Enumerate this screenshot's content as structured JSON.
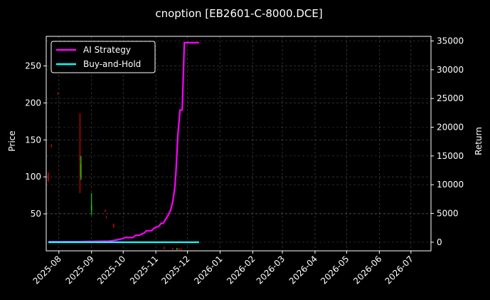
{
  "chart_data": {
    "type": "line",
    "title": "cnoption [EB2601-C-8000.DCE]",
    "xlabel": "",
    "ylabel": "Price",
    "y2label": "Return",
    "x_range": [
      "2025-07-20",
      "2026-07-20"
    ],
    "x_ticks": [
      "2025-08",
      "2025-09",
      "2025-10",
      "2025-11",
      "2025-12",
      "2026-01",
      "2026-02",
      "2026-03",
      "2026-04",
      "2026-05",
      "2026-06",
      "2026-07"
    ],
    "ylim": [
      0,
      290
    ],
    "y_ticks": [
      50,
      100,
      150,
      200,
      250
    ],
    "y2lim": [
      -1500,
      35800
    ],
    "y2_ticks": [
      0,
      5000,
      10000,
      15000,
      20000,
      25000,
      30000,
      35000
    ],
    "grid": true,
    "legend_position": "upper-left",
    "background": "#000000",
    "series": [
      {
        "name": "AI Strategy",
        "axis": "right",
        "color": "#ff00ff",
        "x": [
          "2025-07-22",
          "2025-08-20",
          "2025-09-18",
          "2025-09-25",
          "2025-09-30",
          "2025-10-03",
          "2025-10-10",
          "2025-10-13",
          "2025-10-16",
          "2025-10-21",
          "2025-10-23",
          "2025-10-28",
          "2025-10-30",
          "2025-11-04",
          "2025-11-06",
          "2025-11-08",
          "2025-11-11",
          "2025-11-13",
          "2025-11-15",
          "2025-11-17",
          "2025-11-19",
          "2025-11-20",
          "2025-11-21",
          "2025-11-22",
          "2025-11-24",
          "2025-11-26",
          "2025-11-28",
          "2025-12-12"
        ],
        "values": [
          100,
          100,
          200,
          400,
          600,
          800,
          800,
          1200,
          1200,
          1600,
          2000,
          2000,
          2400,
          2800,
          3300,
          3300,
          4200,
          4800,
          5600,
          7000,
          9500,
          12000,
          15500,
          19000,
          23000,
          23000,
          34700,
          34700
        ]
      },
      {
        "name": "Buy-and-Hold",
        "axis": "right",
        "color": "#00ffff",
        "x": [
          "2025-07-22",
          "2025-12-12"
        ],
        "values": [
          0,
          0
        ]
      }
    ],
    "candles": {
      "up_color": "#00ff00",
      "down_color": "#ff0000",
      "items": [
        {
          "date": "2025-07-22",
          "open": 105,
          "close": 95,
          "high": 106,
          "low": 93
        },
        {
          "date": "2025-07-25",
          "open": 143,
          "close": 141,
          "high": 144,
          "low": 140
        },
        {
          "date": "2025-07-31",
          "open": 213,
          "close": 212,
          "high": 214,
          "low": 211
        },
        {
          "date": "2025-08-21",
          "open": 130,
          "close": 122,
          "high": 186,
          "low": 78
        },
        {
          "date": "2025-08-22",
          "open": 100,
          "close": 118,
          "high": 128,
          "low": 96
        },
        {
          "date": "2025-09-01",
          "open": 55,
          "close": 62,
          "high": 78,
          "low": 48
        },
        {
          "date": "2025-09-14",
          "open": 55,
          "close": 53,
          "high": 56,
          "low": 52
        },
        {
          "date": "2025-09-15",
          "open": 46,
          "close": 45,
          "high": 47,
          "low": 44
        },
        {
          "date": "2025-09-22",
          "open": 36,
          "close": 32,
          "high": 37,
          "low": 31
        },
        {
          "date": "2025-11-09",
          "open": 5,
          "close": 3,
          "high": 6,
          "low": 2
        },
        {
          "date": "2025-11-17",
          "open": 3,
          "close": 2,
          "high": 4,
          "low": 1
        },
        {
          "date": "2025-11-21",
          "open": 2,
          "close": 3,
          "high": 4,
          "low": 1
        },
        {
          "date": "2025-11-23",
          "open": 3,
          "close": 2,
          "high": 4,
          "low": 1
        },
        {
          "date": "2025-11-25",
          "open": 3,
          "close": 2,
          "high": 3,
          "low": 1
        }
      ]
    }
  }
}
